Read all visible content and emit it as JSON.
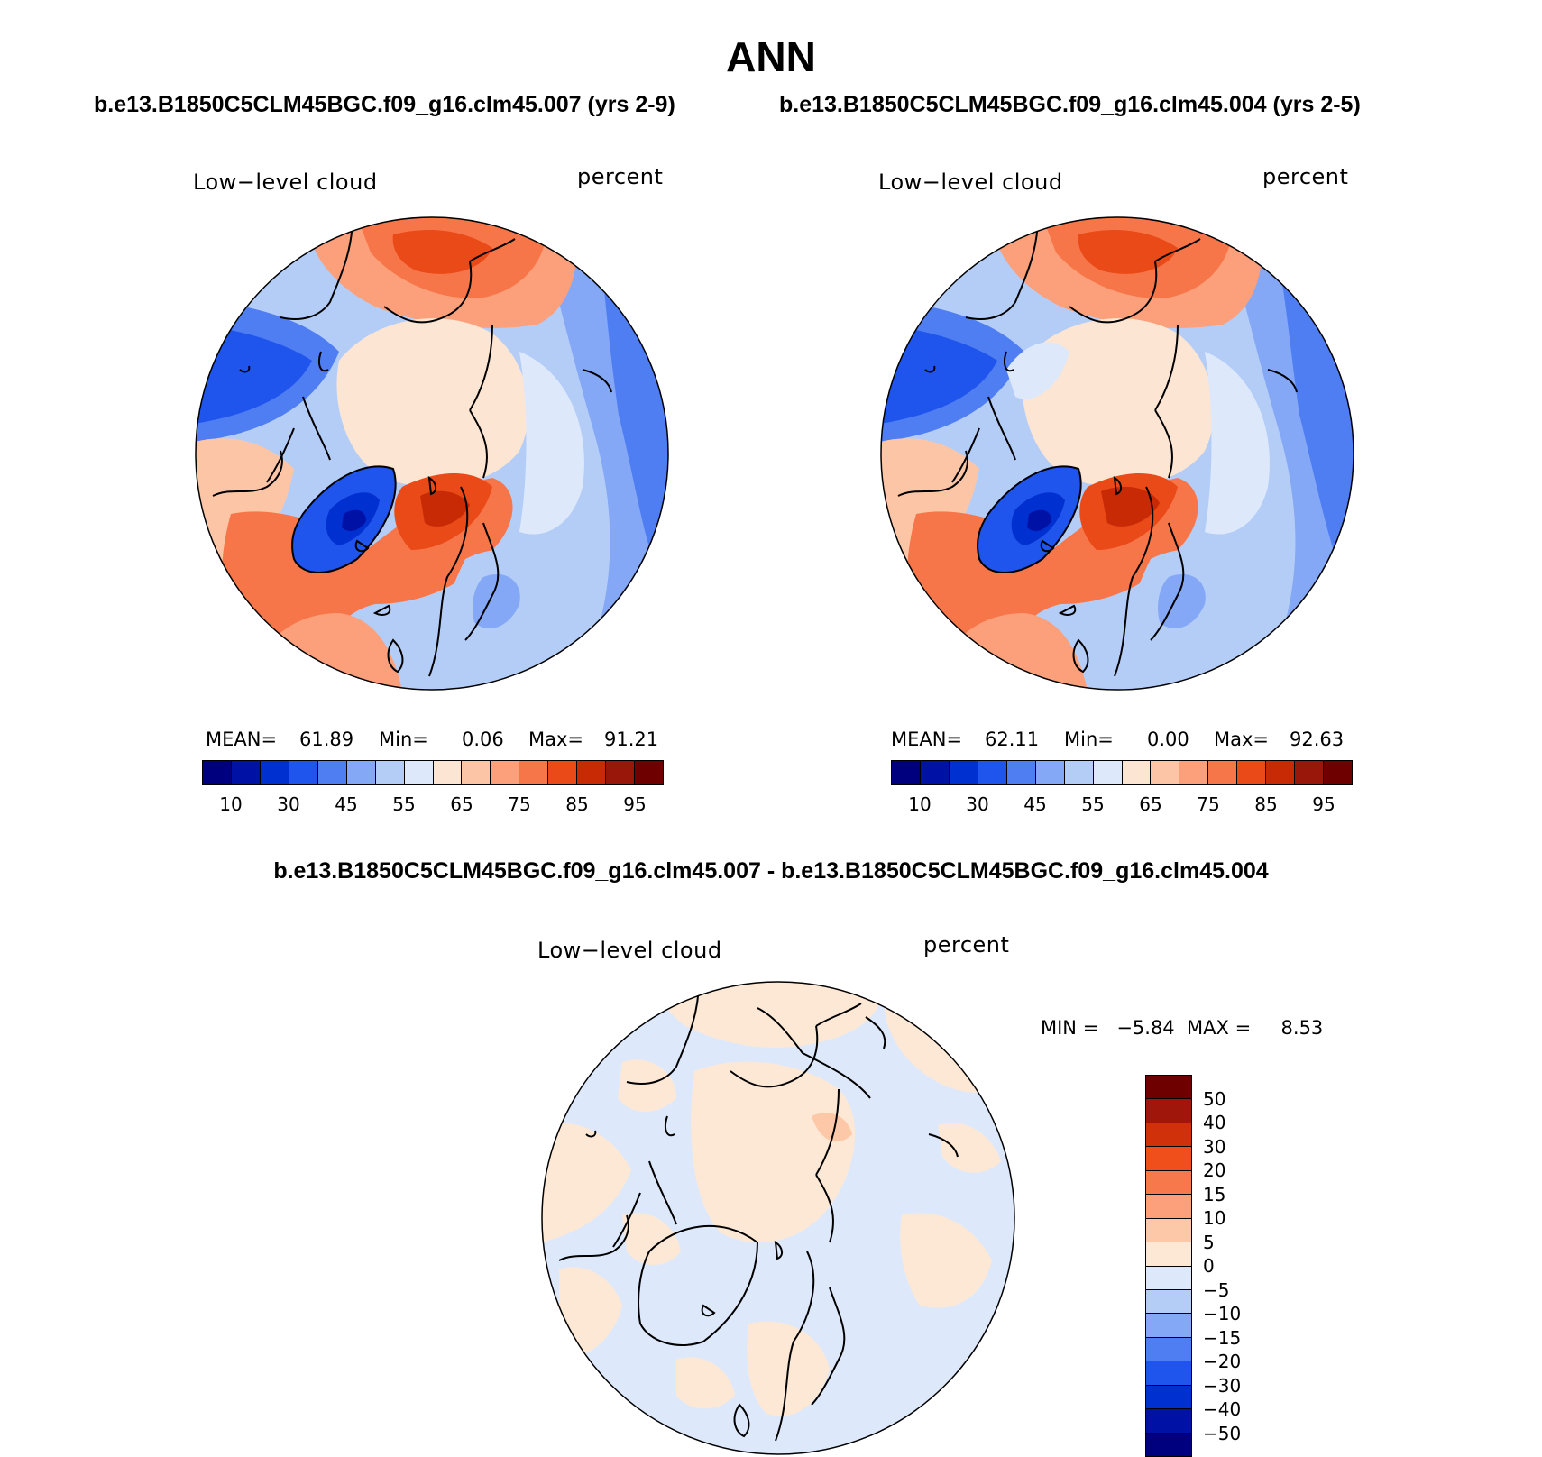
{
  "title": "ANN",
  "case_left_title": "b.e13.B1850C5CLM45BGC.f09_g16.clm45.007 (yrs 2-9)",
  "case_right_title": "b.e13.B1850C5CLM45BGC.f09_g16.clm45.004 (yrs 2-5)",
  "diff_title": "b.e13.B1850C5CLM45BGC.f09_g16.clm45.007 - b.e13.B1850C5CLM45BGC.f09_g16.clm45.004",
  "panels": [
    {
      "variable": "Low−level cloud",
      "units": "percent",
      "mean_label": "MEAN=",
      "mean_value": "61.89",
      "min_label": "Min=",
      "min_value": "0.06",
      "max_label": "Max=",
      "max_value": "91.21"
    },
    {
      "variable": "Low−level cloud",
      "units": "percent",
      "mean_label": "MEAN=",
      "mean_value": "62.11",
      "min_label": "Min=",
      "min_value": "0.00",
      "max_label": "Max=",
      "max_value": "92.63"
    },
    {
      "variable": "Low−level cloud",
      "units": "percent",
      "minmax_text": "MIN =   −5.84  MAX =     8.53"
    }
  ],
  "abs_colorbar": {
    "colors": [
      "#00007f",
      "#0012a6",
      "#0030d0",
      "#1f55ec",
      "#4f7ef3",
      "#84a8f5",
      "#b4cdf7",
      "#dde9fb",
      "#fde5d3",
      "#fcc6a6",
      "#fba07a",
      "#f77649",
      "#ea4918",
      "#c82a05",
      "#98160a",
      "#6e0000"
    ],
    "tick_labels": [
      "10",
      "30",
      "45",
      "55",
      "65",
      "75",
      "85",
      "95"
    ]
  },
  "diff_colorbar": {
    "colors": [
      "#6e0000",
      "#a0160a",
      "#d0300a",
      "#f04e1a",
      "#f7784a",
      "#fba07a",
      "#fcc8a8",
      "#fde8d6",
      "#dde9fb",
      "#b4cdf7",
      "#84a8f5",
      "#4f7ef3",
      "#1f55ec",
      "#0030d0",
      "#0012a6",
      "#00007f"
    ],
    "tick_labels": [
      "50",
      "40",
      "30",
      "20",
      "15",
      "10",
      "5",
      "0",
      "−5",
      "−10",
      "−15",
      "−20",
      "−30",
      "−40",
      "−50"
    ]
  }
}
